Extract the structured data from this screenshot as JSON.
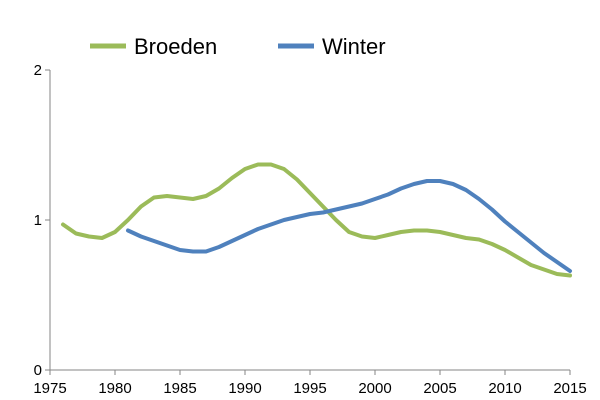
{
  "chart_data": {
    "type": "line",
    "title": "",
    "xlabel": "",
    "ylabel": "",
    "xlim": [
      1975,
      2015
    ],
    "ylim": [
      0,
      2
    ],
    "x_ticks": [
      1975,
      1980,
      1985,
      1990,
      1995,
      2000,
      2005,
      2010,
      2015
    ],
    "y_ticks": [
      0,
      1,
      2
    ],
    "grid": false,
    "legend_position": "top",
    "series": [
      {
        "name": "Broeden",
        "color": "#9bbb59",
        "x": [
          1976,
          1977,
          1978,
          1979,
          1980,
          1981,
          1982,
          1983,
          1984,
          1985,
          1986,
          1987,
          1988,
          1989,
          1990,
          1991,
          1992,
          1993,
          1994,
          1995,
          1996,
          1997,
          1998,
          1999,
          2000,
          2001,
          2002,
          2003,
          2004,
          2005,
          2006,
          2007,
          2008,
          2009,
          2010,
          2011,
          2012,
          2013,
          2014,
          2015
        ],
        "y": [
          0.97,
          0.91,
          0.89,
          0.88,
          0.92,
          1.0,
          1.09,
          1.15,
          1.16,
          1.15,
          1.14,
          1.16,
          1.21,
          1.28,
          1.34,
          1.37,
          1.37,
          1.34,
          1.27,
          1.18,
          1.09,
          1.0,
          0.92,
          0.89,
          0.88,
          0.9,
          0.92,
          0.93,
          0.93,
          0.92,
          0.9,
          0.88,
          0.87,
          0.84,
          0.8,
          0.75,
          0.7,
          0.67,
          0.64,
          0.63
        ]
      },
      {
        "name": "Winter",
        "color": "#4f81bd",
        "x": [
          1981,
          1982,
          1983,
          1984,
          1985,
          1986,
          1987,
          1988,
          1989,
          1990,
          1991,
          1992,
          1993,
          1994,
          1995,
          1996,
          1997,
          1998,
          1999,
          2000,
          2001,
          2002,
          2003,
          2004,
          2005,
          2006,
          2007,
          2008,
          2009,
          2010,
          2011,
          2012,
          2013,
          2014,
          2015
        ],
        "y": [
          0.93,
          0.89,
          0.86,
          0.83,
          0.8,
          0.79,
          0.79,
          0.82,
          0.86,
          0.9,
          0.94,
          0.97,
          1.0,
          1.02,
          1.04,
          1.05,
          1.07,
          1.09,
          1.11,
          1.14,
          1.17,
          1.21,
          1.24,
          1.26,
          1.26,
          1.24,
          1.2,
          1.14,
          1.07,
          0.99,
          0.92,
          0.85,
          0.78,
          0.72,
          0.66
        ]
      }
    ]
  }
}
